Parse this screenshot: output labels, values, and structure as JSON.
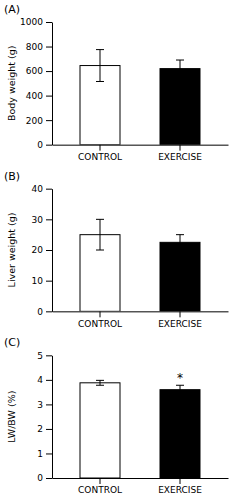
{
  "chart_data": [
    {
      "type": "bar",
      "title": "(A)",
      "ylabel": "Body weight (g)",
      "categories": [
        "CONTROL",
        "EXERCISE"
      ],
      "values": [
        645,
        620
      ],
      "errors": [
        130,
        70
      ],
      "colors": [
        "white",
        "black"
      ],
      "ylim": [
        0,
        1000
      ],
      "yticks": [
        0,
        200,
        400,
        600,
        800,
        1000
      ]
    },
    {
      "type": "bar",
      "title": "(B)",
      "ylabel": "Liver weight (g)",
      "categories": [
        "CONTROL",
        "EXERCISE"
      ],
      "values": [
        25,
        22.5
      ],
      "errors": [
        5,
        2.5
      ],
      "colors": [
        "white",
        "black"
      ],
      "ylim": [
        0,
        40
      ],
      "yticks": [
        0,
        10,
        20,
        30,
        40
      ]
    },
    {
      "type": "bar",
      "title": "(C)",
      "ylabel": "LW/BW (%)",
      "categories": [
        "CONTROL",
        "EXERCISE"
      ],
      "values": [
        3.88,
        3.6
      ],
      "errors": [
        0.1,
        0.18
      ],
      "colors": [
        "white",
        "black"
      ],
      "significance": [
        null,
        "*"
      ],
      "ylim": [
        0,
        5
      ],
      "yticks": [
        0,
        1,
        2,
        3,
        4,
        5
      ]
    }
  ]
}
